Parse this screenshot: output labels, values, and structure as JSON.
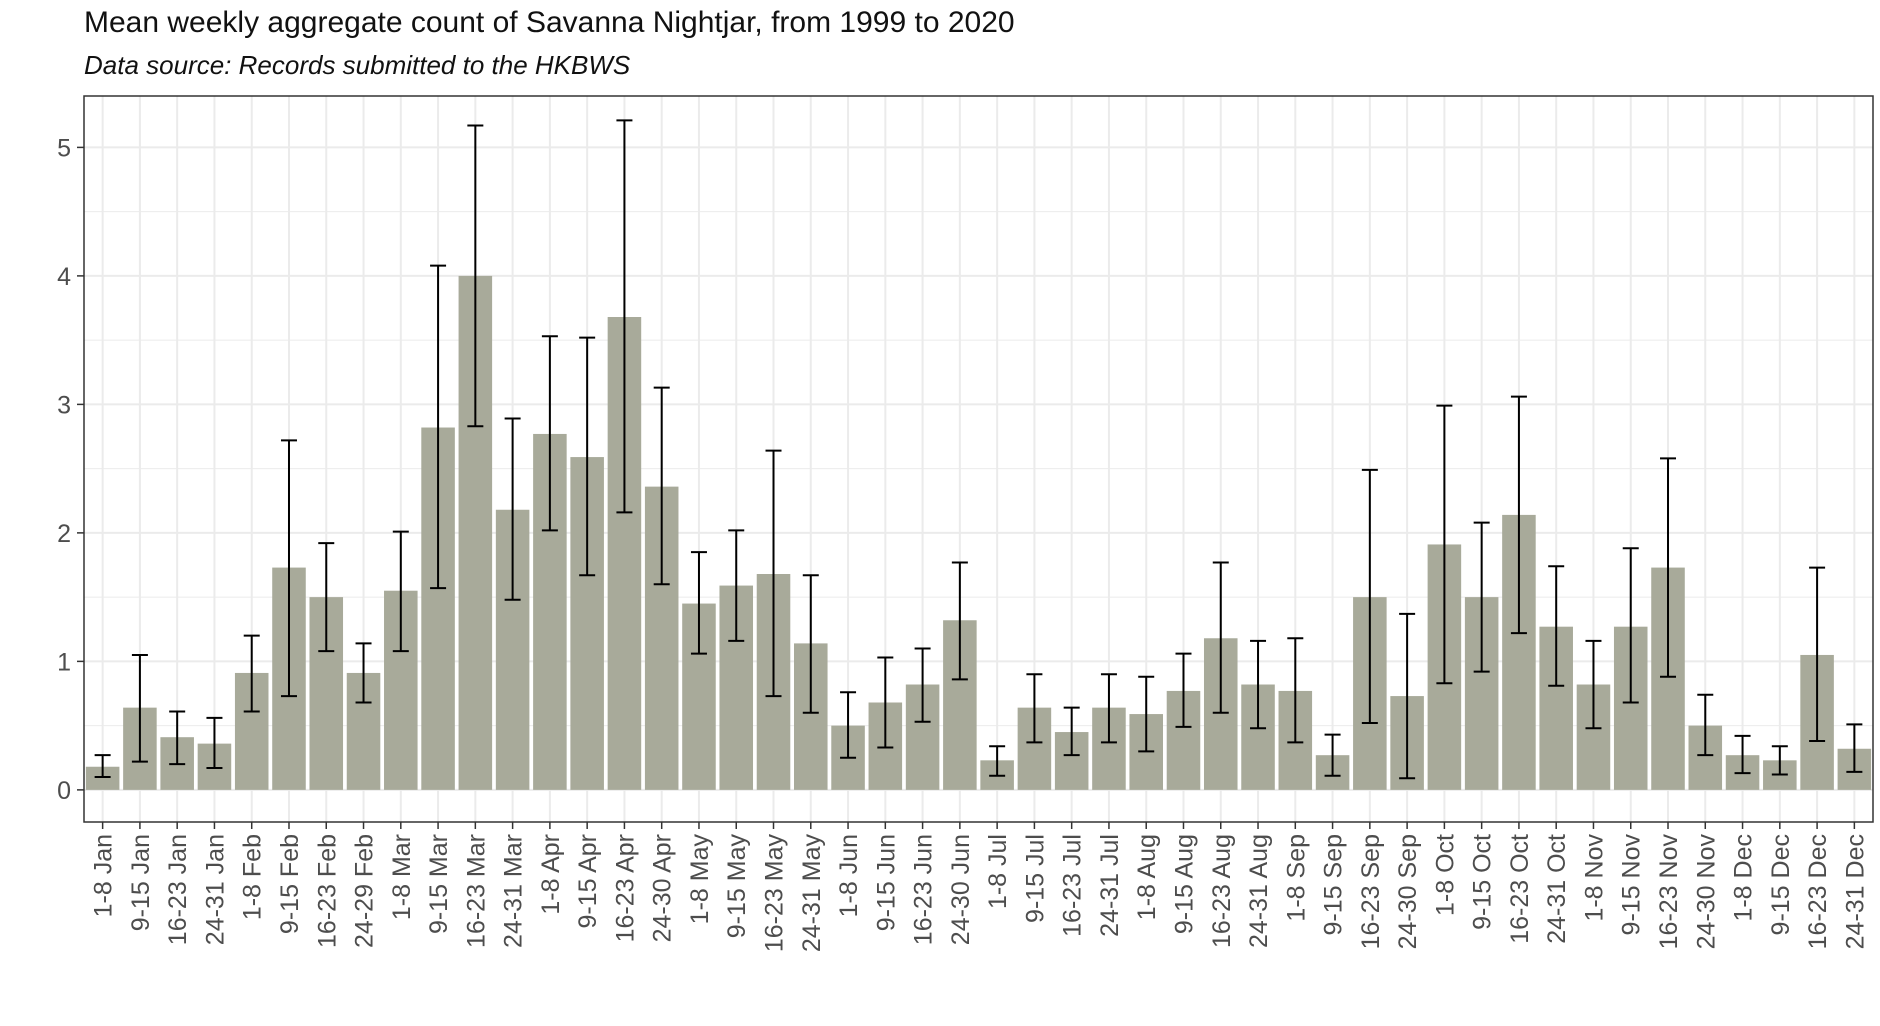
{
  "chart_data": {
    "type": "bar",
    "title": "Mean weekly aggregate count of Savanna Nightjar, from 1999 to 2020",
    "subtitle": "Data source: Records submitted to the HKBWS",
    "xlabel": "",
    "ylabel": "",
    "ylim": [
      -0.25,
      5.4
    ],
    "yticks": [
      "0",
      "1",
      "2",
      "3",
      "4",
      "5"
    ],
    "grid": true,
    "colors": {
      "bar": "#a8aa9a",
      "error": "#000000",
      "grid": "#ebebeb",
      "panel_border": "#333333"
    },
    "categories": [
      "1-8 Jan",
      "9-15 Jan",
      "16-23 Jan",
      "24-31 Jan",
      "1-8 Feb",
      "9-15 Feb",
      "16-23 Feb",
      "24-29 Feb",
      "1-8 Mar",
      "9-15 Mar",
      "16-23 Mar",
      "24-31 Mar",
      "1-8 Apr",
      "9-15 Apr",
      "16-23 Apr",
      "24-30 Apr",
      "1-8 May",
      "9-15 May",
      "16-23 May",
      "24-31 May",
      "1-8 Jun",
      "9-15 Jun",
      "16-23 Jun",
      "24-30 Jun",
      "1-8 Jul",
      "9-15 Jul",
      "16-23 Jul",
      "24-31 Jul",
      "1-8 Aug",
      "9-15 Aug",
      "16-23 Aug",
      "24-31 Aug",
      "1-8 Sep",
      "9-15 Sep",
      "16-23 Sep",
      "24-30 Sep",
      "1-8 Oct",
      "9-15 Oct",
      "16-23 Oct",
      "24-31 Oct",
      "1-8 Nov",
      "9-15 Nov",
      "16-23 Nov",
      "24-30 Nov",
      "1-8 Dec",
      "9-15 Dec",
      "16-23 Dec",
      "24-31 Dec"
    ],
    "values": [
      0.18,
      0.64,
      0.41,
      0.36,
      0.91,
      1.73,
      1.5,
      0.91,
      1.55,
      2.82,
      4.0,
      2.18,
      2.77,
      2.59,
      3.68,
      2.36,
      1.45,
      1.59,
      1.68,
      1.14,
      0.5,
      0.68,
      0.82,
      1.32,
      0.23,
      0.64,
      0.45,
      0.64,
      0.59,
      0.77,
      1.18,
      0.82,
      0.77,
      0.27,
      1.5,
      0.73,
      1.91,
      1.5,
      2.14,
      1.27,
      0.82,
      1.27,
      1.73,
      0.5,
      0.27,
      0.23,
      1.05,
      0.32
    ],
    "error_low": [
      0.1,
      0.22,
      0.2,
      0.17,
      0.61,
      0.73,
      1.08,
      0.68,
      1.08,
      1.57,
      2.83,
      1.48,
      2.02,
      1.67,
      2.16,
      1.6,
      1.06,
      1.16,
      0.73,
      0.6,
      0.25,
      0.33,
      0.53,
      0.86,
      0.11,
      0.37,
      0.27,
      0.37,
      0.3,
      0.49,
      0.6,
      0.48,
      0.37,
      0.11,
      0.52,
      0.09,
      0.83,
      0.92,
      1.22,
      0.81,
      0.48,
      0.68,
      0.88,
      0.27,
      0.13,
      0.12,
      0.38,
      0.14
    ],
    "error_high": [
      0.27,
      1.05,
      0.61,
      0.56,
      1.2,
      2.72,
      1.92,
      1.14,
      2.01,
      4.08,
      5.17,
      2.89,
      3.53,
      3.52,
      5.21,
      3.13,
      1.85,
      2.02,
      2.64,
      1.67,
      0.76,
      1.03,
      1.1,
      1.77,
      0.34,
      0.9,
      0.64,
      0.9,
      0.88,
      1.06,
      1.77,
      1.16,
      1.18,
      0.43,
      2.49,
      1.37,
      2.99,
      2.08,
      3.06,
      1.74,
      1.16,
      1.88,
      2.58,
      0.74,
      0.42,
      0.34,
      1.73,
      0.51
    ]
  }
}
